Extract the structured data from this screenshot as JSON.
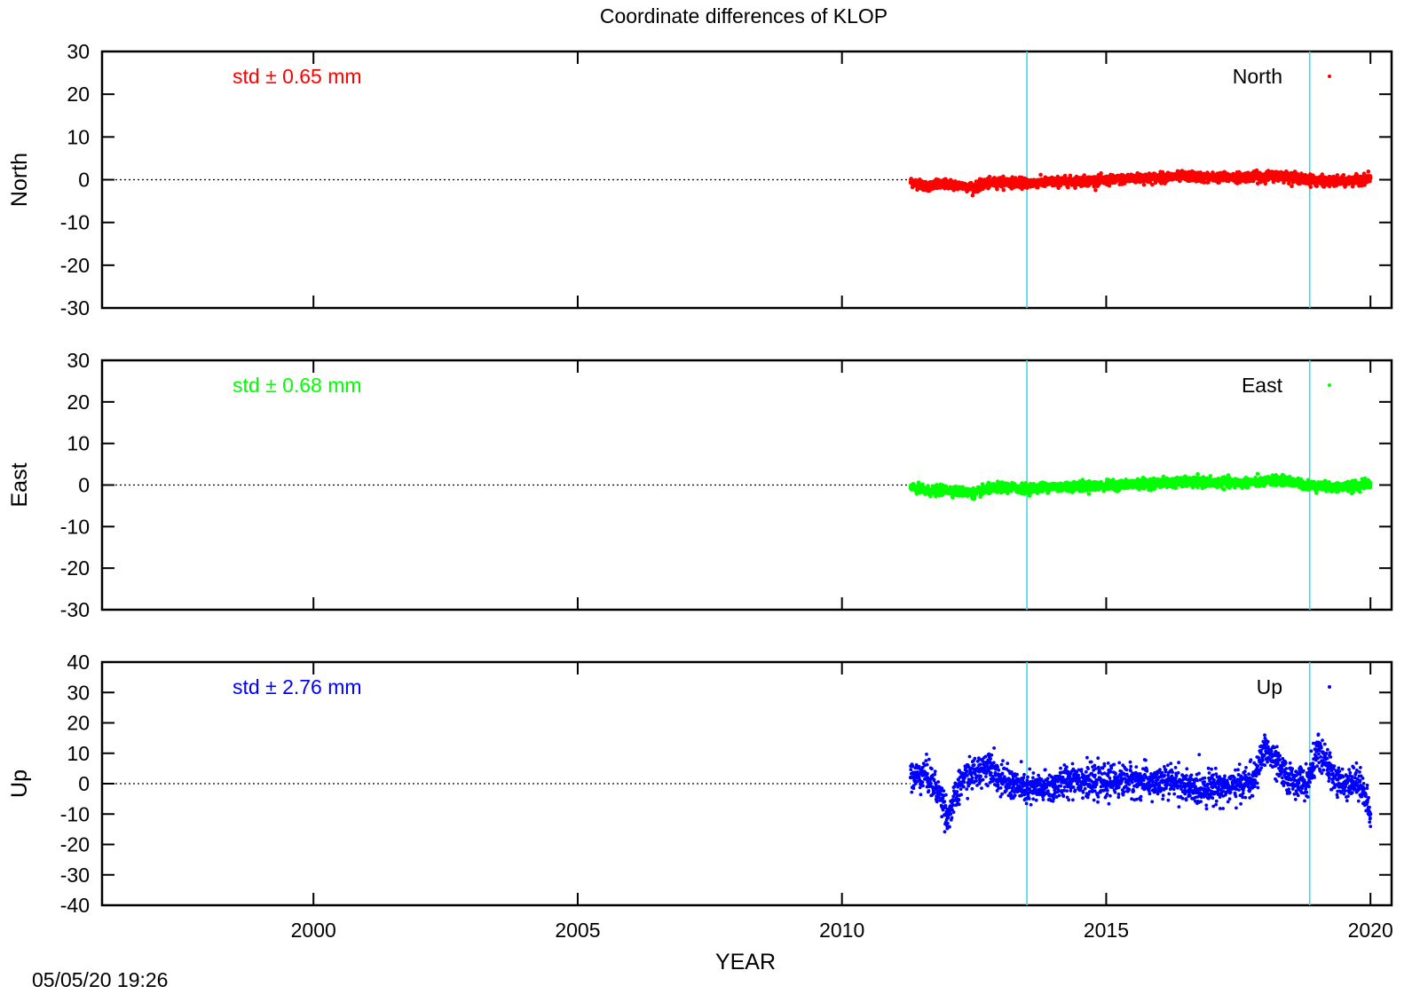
{
  "timestamp": "05/05/20 19:26",
  "chart_data": {
    "type": "scatter",
    "title": "Coordinate differences of KLOP",
    "xlabel": "YEAR",
    "xlim": [
      1996,
      2020.4
    ],
    "x_ticks": [
      2000,
      2005,
      2010,
      2015,
      2020
    ],
    "event_lines_x": [
      2013.5,
      2018.85
    ],
    "event_line_color": "#3fd7ea",
    "zero_line": true,
    "grid": false,
    "legend_placement": "top-right",
    "panels": [
      {
        "ylabel": "North",
        "ylim": [
          -30,
          30
        ],
        "y_ticks": [
          30,
          20,
          10,
          0,
          -10,
          -20,
          -30
        ],
        "std_label": "std ± 0.65 mm",
        "color": "#ff0000",
        "series": [
          {
            "name": "North",
            "x": [
              2011.3,
              2011.6,
              2012.0,
              2012.5,
              2012.7,
              2013.0,
              2013.5,
              2014.0,
              2014.5,
              2015.0,
              2015.5,
              2016.0,
              2016.5,
              2017.0,
              2017.5,
              2018.0,
              2018.3,
              2018.8,
              2019.3,
              2019.7,
              2020.0
            ],
            "y": [
              -0.5,
              -1.5,
              -1.0,
              -1.8,
              -1.0,
              -0.5,
              -0.8,
              -0.5,
              -0.3,
              -0.2,
              0.3,
              0.5,
              0.8,
              0.5,
              0.6,
              0.8,
              1.0,
              0.0,
              -0.5,
              -0.2,
              0.4
            ]
          }
        ]
      },
      {
        "ylabel": "East",
        "ylim": [
          -30,
          30
        ],
        "y_ticks": [
          30,
          20,
          10,
          0,
          -10,
          -20,
          -30
        ],
        "std_label": "std ± 0.68 mm",
        "color": "#00ff00",
        "series": [
          {
            "name": "East",
            "x": [
              2011.3,
              2011.6,
              2012.0,
              2012.5,
              2012.7,
              2013.0,
              2013.5,
              2014.0,
              2014.5,
              2015.0,
              2015.5,
              2016.0,
              2016.5,
              2017.0,
              2017.5,
              2018.0,
              2018.3,
              2018.8,
              2019.3,
              2019.7,
              2020.0
            ],
            "y": [
              -0.6,
              -1.5,
              -1.2,
              -2.0,
              -1.2,
              -0.5,
              -0.8,
              -0.4,
              -0.3,
              -0.2,
              0.2,
              0.5,
              0.7,
              0.6,
              0.5,
              0.8,
              1.2,
              0.0,
              -0.6,
              -0.3,
              0.5
            ]
          }
        ]
      },
      {
        "ylabel": "Up",
        "ylim": [
          -40,
          40
        ],
        "y_ticks": [
          40,
          30,
          20,
          10,
          0,
          -10,
          -20,
          -30,
          -40
        ],
        "std_label": "std ± 2.76 mm",
        "color": "#0000ff",
        "series": [
          {
            "name": "Up",
            "x": [
              2011.3,
              2011.6,
              2011.9,
              2012.0,
              2012.3,
              2012.6,
              2012.8,
              2013.0,
              2013.5,
              2014.0,
              2014.4,
              2014.8,
              2015.2,
              2015.6,
              2016.0,
              2016.3,
              2016.6,
              2017.0,
              2017.4,
              2017.8,
              2018.0,
              2018.4,
              2018.8,
              2019.0,
              2019.4,
              2019.8,
              2020.0
            ],
            "y": [
              2,
              3,
              -5,
              -11,
              2,
              4,
              7,
              1,
              -2,
              -1,
              2,
              0,
              1,
              1,
              0,
              1,
              -2,
              -1,
              -1,
              1,
              12,
              2,
              0,
              11,
              0,
              1,
              -10
            ]
          }
        ]
      }
    ]
  }
}
